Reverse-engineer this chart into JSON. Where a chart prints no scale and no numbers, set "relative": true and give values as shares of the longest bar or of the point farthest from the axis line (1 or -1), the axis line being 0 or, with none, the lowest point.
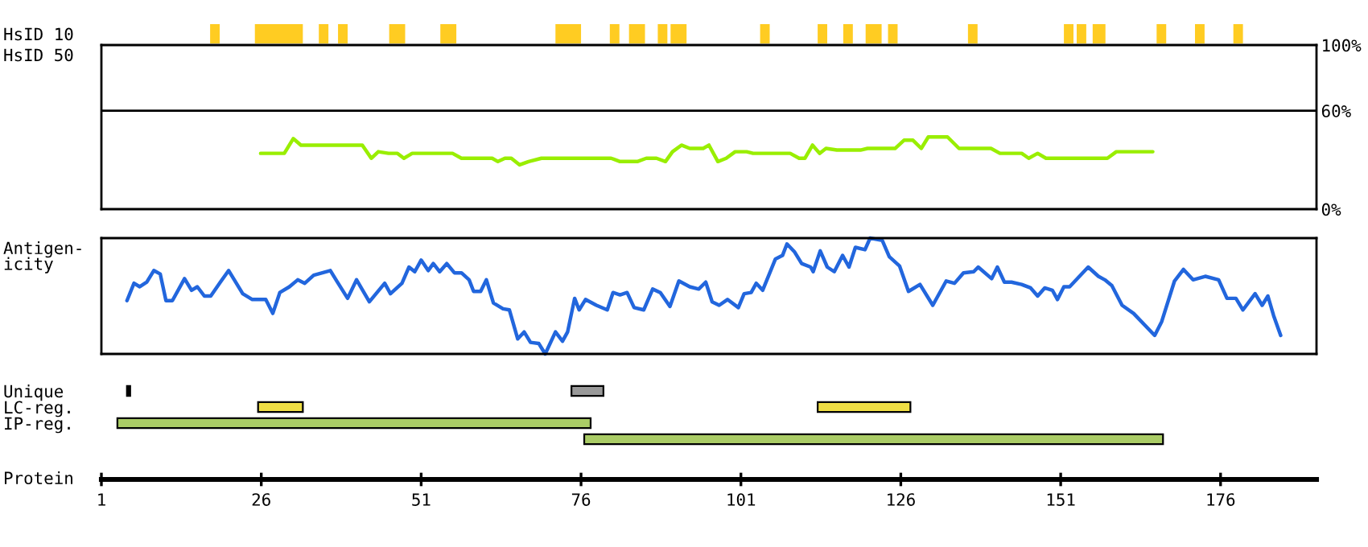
{
  "chart_data": [
    {
      "type": "bar",
      "orientation": "horizontal",
      "categories": [
        "HsID 10"
      ],
      "xlim": [
        1,
        191
      ],
      "tick_labels": "y",
      "series": [
        {
          "color": "#ffcc22",
          "base": [
            18
          ],
          "values": [
            1.5
          ]
        },
        {
          "color": "#ffcc22",
          "base": [
            25
          ],
          "values": [
            7.5
          ]
        },
        {
          "color": "#ffcc22",
          "base": [
            35
          ],
          "values": [
            1.5
          ]
        },
        {
          "color": "#ffcc22",
          "base": [
            38
          ],
          "values": [
            1.5
          ]
        },
        {
          "color": "#ffcc22",
          "base": [
            46
          ],
          "values": [
            2.5
          ]
        },
        {
          "color": "#ffcc22",
          "base": [
            54
          ],
          "values": [
            2.5
          ]
        },
        {
          "color": "#ffcc22",
          "base": [
            72
          ],
          "values": [
            4
          ]
        },
        {
          "color": "#ffcc22",
          "base": [
            80.5
          ],
          "values": [
            1.5
          ]
        },
        {
          "color": "#ffcc22",
          "base": [
            83.5
          ],
          "values": [
            2.5
          ]
        },
        {
          "color": "#ffcc22",
          "base": [
            88
          ],
          "values": [
            1.5
          ]
        },
        {
          "color": "#ffcc22",
          "base": [
            90
          ],
          "values": [
            2.5
          ]
        },
        {
          "color": "#ffcc22",
          "base": [
            104
          ],
          "values": [
            1.5
          ]
        },
        {
          "color": "#ffcc22",
          "base": [
            113
          ],
          "values": [
            1.5
          ]
        },
        {
          "color": "#ffcc22",
          "base": [
            117
          ],
          "values": [
            1.5
          ]
        },
        {
          "color": "#ffcc22",
          "base": [
            120.5
          ],
          "values": [
            2.5
          ]
        },
        {
          "color": "#ffcc22",
          "base": [
            124
          ],
          "values": [
            1.5
          ]
        },
        {
          "color": "#ffcc22",
          "base": [
            136.5
          ],
          "values": [
            1.5
          ]
        },
        {
          "color": "#ffcc22",
          "base": [
            151.5
          ],
          "values": [
            1.5
          ]
        },
        {
          "color": "#ffcc22",
          "base": [
            153.5
          ],
          "values": [
            1.5
          ]
        },
        {
          "color": "#ffcc22",
          "base": [
            156
          ],
          "values": [
            2
          ]
        },
        {
          "color": "#ffcc22",
          "base": [
            166
          ],
          "values": [
            1.5
          ]
        },
        {
          "color": "#ffcc22",
          "base": [
            172
          ],
          "values": [
            1.5
          ]
        },
        {
          "color": "#ffcc22",
          "base": [
            178
          ],
          "values": [
            1.5
          ]
        }
      ]
    },
    {
      "type": "line",
      "ylabel": "HsID 50",
      "xlim": [
        1,
        191
      ],
      "ylim": [
        0,
        100
      ],
      "yticks": [
        {
          "value": 0,
          "label": "0%"
        },
        {
          "value": 60,
          "label": "60%"
        },
        {
          "value": 100,
          "label": "100%"
        }
      ],
      "tick_labels": "y",
      "ref_lines": [
        {
          "axis": "y",
          "value": 60,
          "color": "#000000"
        }
      ],
      "series": [
        {
          "color": "#99ee00",
          "x": [
            25.9,
            29.6,
            31,
            32.2,
            41.8,
            43.2,
            44.3,
            45.9,
            47.3,
            48.3,
            49.6,
            55.9,
            57.3,
            62.1,
            63,
            64.1,
            65.1,
            66.4,
            67.8,
            69.8,
            80.7,
            82.1,
            84.8,
            86.2,
            87.8,
            89.2,
            90.3,
            91.7,
            93,
            95.1,
            96,
            97.4,
            98.7,
            100.1,
            101.9,
            102.9,
            108.7,
            110.1,
            111,
            112.2,
            113.3,
            114.3,
            116,
            119.7,
            120.8,
            125.1,
            126.5,
            127.9,
            129.2,
            130.3,
            133.3,
            135.1,
            140.1,
            141.5,
            144.9,
            146,
            147.4,
            148.7,
            158.3,
            159.7,
            165.4
          ],
          "values": [
            34,
            34,
            43,
            39,
            39,
            31,
            35,
            34,
            34,
            31,
            34,
            34,
            31,
            31,
            29,
            31,
            31,
            27,
            29,
            31,
            31,
            29,
            29,
            31,
            31,
            29,
            35,
            39,
            37,
            37,
            39,
            29,
            31,
            35,
            35,
            34,
            34,
            31,
            31,
            39,
            34,
            37,
            36,
            36,
            37,
            37,
            42,
            42,
            37,
            44,
            44,
            37,
            37,
            34,
            34,
            31,
            34,
            31,
            31,
            35,
            35
          ]
        }
      ]
    },
    {
      "type": "line",
      "ylabel": "Antigen-\nicity",
      "relative": true,
      "xlim": [
        1,
        191
      ],
      "tick_labels": false,
      "series": [
        {
          "color": "#2266dd",
          "x": [
            5.0,
            6.1,
            7.0,
            8.1,
            9.2,
            10.2,
            11.1,
            12.1,
            14.0,
            15.1,
            16.0,
            17.1,
            18.1,
            19.6,
            20.9,
            23.1,
            24.6,
            26.7,
            27.8,
            28.9,
            30.4,
            31.7,
            32.8,
            34.2,
            36.8,
            37.9,
            39.5,
            40.9,
            42.9,
            45.3,
            46.2,
            48.0,
            49.1,
            50.0,
            51.0,
            52.1,
            52.9,
            53.9,
            55.0,
            56.2,
            57.3,
            58.5,
            59.2,
            60.3,
            61.2,
            62.3,
            63.8,
            64.8,
            66.1,
            67.1,
            68.1,
            69.4,
            70.4,
            72.0,
            73.1,
            73.9,
            75.0,
            75.7,
            76.7,
            78.4,
            80.1,
            81.0,
            82.1,
            83.2,
            84.3,
            85.8,
            87.2,
            88.4,
            89.9,
            91.3,
            93.0,
            94.4,
            95.5,
            96.5,
            97.6,
            98.9,
            100.6,
            101.5,
            102.6,
            103.4,
            104.4,
            106.4,
            107.5,
            108.2,
            109.4,
            110.5,
            111.9,
            112.3,
            113.4,
            114.5,
            115.6,
            116.9,
            117.9,
            118.9,
            120.4,
            121.2,
            123.1,
            124.2,
            125.8,
            127.2,
            129.0,
            131.0,
            133.1,
            134.4,
            135.8,
            137.4,
            138.1,
            140.2,
            141.1,
            142.2,
            143.3,
            144.9,
            146.3,
            147.4,
            148.5,
            149.7,
            150.5,
            151.5,
            152.4,
            155.3,
            156.9,
            157.9,
            159.0,
            160.6,
            162.4,
            165.7,
            166.8,
            168.8,
            170.2,
            171.7,
            173.6,
            175.7,
            177.0,
            178.4,
            179.5,
            181.4,
            182.5,
            183.4,
            184.3,
            185.4
          ],
          "values": [
            0.46,
            0.61,
            0.58,
            0.62,
            0.72,
            0.69,
            0.46,
            0.46,
            0.65,
            0.55,
            0.58,
            0.5,
            0.5,
            0.62,
            0.72,
            0.52,
            0.47,
            0.47,
            0.35,
            0.53,
            0.58,
            0.64,
            0.61,
            0.68,
            0.72,
            0.62,
            0.48,
            0.64,
            0.45,
            0.61,
            0.52,
            0.61,
            0.75,
            0.71,
            0.81,
            0.72,
            0.78,
            0.71,
            0.78,
            0.7,
            0.7,
            0.64,
            0.54,
            0.54,
            0.64,
            0.44,
            0.39,
            0.38,
            0.13,
            0.19,
            0.1,
            0.09,
            0,
            0.19,
            0.11,
            0.19,
            0.48,
            0.38,
            0.47,
            0.42,
            0.38,
            0.53,
            0.51,
            0.53,
            0.4,
            0.38,
            0.56,
            0.53,
            0.41,
            0.63,
            0.58,
            0.56,
            0.62,
            0.45,
            0.42,
            0.47,
            0.4,
            0.52,
            0.53,
            0.61,
            0.55,
            0.82,
            0.85,
            0.95,
            0.88,
            0.78,
            0.75,
            0.71,
            0.89,
            0.75,
            0.71,
            0.85,
            0.75,
            0.92,
            0.9,
            1,
            0.98,
            0.84,
            0.76,
            0.54,
            0.6,
            0.42,
            0.63,
            0.61,
            0.7,
            0.71,
            0.75,
            0.65,
            0.75,
            0.62,
            0.62,
            0.6,
            0.57,
            0.5,
            0.57,
            0.55,
            0.47,
            0.58,
            0.58,
            0.75,
            0.67,
            0.64,
            0.59,
            0.42,
            0.35,
            0.16,
            0.28,
            0.63,
            0.73,
            0.64,
            0.67,
            0.64,
            0.48,
            0.48,
            0.38,
            0.52,
            0.42,
            0.5,
            0.33,
            0.16
          ]
        }
      ]
    },
    {
      "type": "bar",
      "orientation": "horizontal",
      "categories": [
        "Unique",
        "LC-reg.",
        "IP-reg.",
        null
      ],
      "xlabel": "Protein",
      "xlim": [
        1,
        191
      ],
      "xticks": [
        1,
        26,
        51,
        76,
        101,
        126,
        151,
        176
      ],
      "series": [
        {
          "colors": [
            "#000000",
            "#eedd44",
            "#aacc66",
            null
          ],
          "base": [
            5,
            25.5,
            3.5,
            null
          ],
          "values": [
            0.5,
            7,
            74,
            null
          ]
        },
        {
          "colors": [
            "#999999",
            "#eedd44",
            null,
            "#aacc66"
          ],
          "base": [
            74.5,
            113,
            null,
            76.5
          ],
          "values": [
            5,
            14.5,
            null,
            90.5
          ]
        }
      ]
    }
  ]
}
